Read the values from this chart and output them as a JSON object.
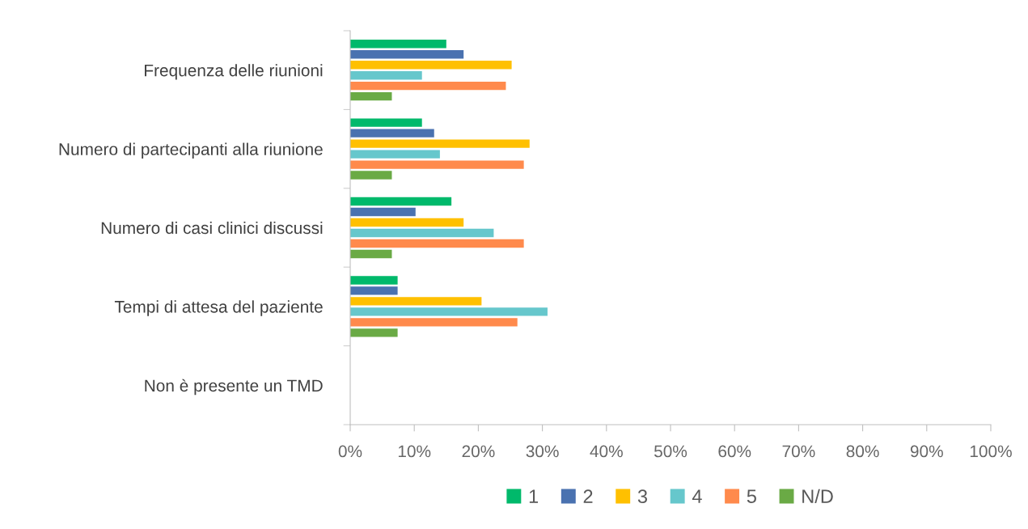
{
  "chart_data": {
    "type": "bar",
    "orientation": "horizontal",
    "categories": [
      "Frequenza delle riunioni",
      "Numero di partecipanti alla riunione",
      "Numero di casi clinici discussi",
      "Tempi di attesa del paziente",
      "Non è presente un TMD"
    ],
    "series": [
      {
        "name": "1",
        "color": "#00b96b",
        "values": [
          15.0,
          11.2,
          15.8,
          7.4,
          null
        ]
      },
      {
        "name": "2",
        "color": "#4a72b0",
        "values": [
          17.7,
          13.1,
          10.2,
          7.4,
          null
        ]
      },
      {
        "name": "3",
        "color": "#ffc000",
        "values": [
          25.2,
          28.0,
          17.7,
          20.5,
          null
        ]
      },
      {
        "name": "4",
        "color": "#66c7cc",
        "values": [
          11.2,
          14.0,
          22.4,
          30.8,
          null
        ]
      },
      {
        "name": "5",
        "color": "#ff8a4c",
        "values": [
          24.3,
          27.1,
          27.1,
          26.1,
          null
        ]
      },
      {
        "name": "N/D",
        "color": "#6aaa45",
        "values": [
          6.5,
          6.5,
          6.5,
          7.4,
          null
        ]
      }
    ],
    "xlim": [
      0,
      100
    ],
    "xticks": [
      {
        "value": 0,
        "label": "0%"
      },
      {
        "value": 10,
        "label": "10%"
      },
      {
        "value": 20,
        "label": "20%"
      },
      {
        "value": 30,
        "label": "30%"
      },
      {
        "value": 40,
        "label": "40%"
      },
      {
        "value": 50,
        "label": "50%"
      },
      {
        "value": 60,
        "label": "60%"
      },
      {
        "value": 70,
        "label": "70%"
      },
      {
        "value": 80,
        "label": "80%"
      },
      {
        "value": 90,
        "label": "90%"
      },
      {
        "value": 100,
        "label": "100%"
      }
    ],
    "grid": false,
    "legend": "bottom"
  }
}
